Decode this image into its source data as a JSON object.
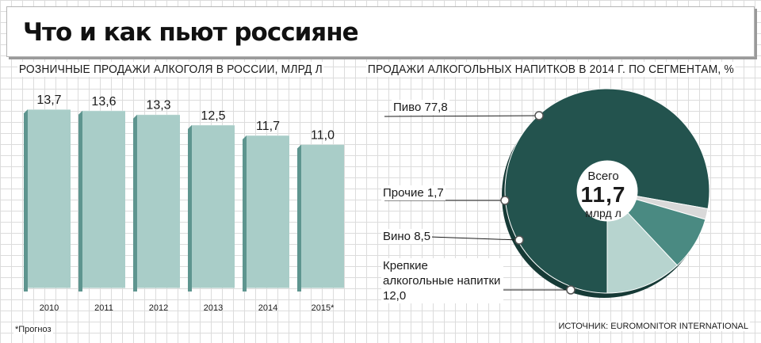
{
  "title": "Что и как пьют россияне",
  "footnote": "*Прогноз",
  "source": "ИСТОЧНИК: EUROMONITOR INTERNATIONAL",
  "colors": {
    "bar_face": "#a9cdc8",
    "bar_side": "#5e958f",
    "bar_top": "#d4e7e4",
    "pie_beer": "#23534e",
    "pie_beer_dark": "#163a36",
    "pie_other": "#d9d9d9",
    "pie_wine": "#4a8a82",
    "pie_spirits": "#b7d4cf"
  },
  "chart_data": [
    {
      "type": "bar",
      "title": "РОЗНИЧНЫЕ ПРОДАЖИ АЛКОГОЛЯ В РОССИИ, МЛРД Л",
      "categories": [
        "2010",
        "2011",
        "2012",
        "2013",
        "2014",
        "2015*"
      ],
      "values": [
        13.7,
        13.6,
        13.3,
        12.5,
        11.7,
        11.0
      ],
      "value_labels": [
        "13,7",
        "13,6",
        "13,3",
        "12,5",
        "11,7",
        "11,0"
      ],
      "ylim": [
        0,
        14.5
      ],
      "grid": true
    },
    {
      "type": "pie",
      "title": "ПРОДАЖИ АЛКОГОЛЬНЫХ НАПИТКОВ В 2014 Г. ПО СЕГМЕНТАМ, %",
      "slices": [
        {
          "label": "Пиво",
          "value": 77.8,
          "value_label": "77,8"
        },
        {
          "label": "Прочие",
          "value": 1.7,
          "value_label": "1,7"
        },
        {
          "label": "Вино",
          "value": 8.5,
          "value_label": "8,5"
        },
        {
          "label": "Крепкие алкогольные напитки",
          "value": 12.0,
          "value_label": "12,0"
        }
      ],
      "total": {
        "caption": "Всего",
        "value": "11,7",
        "unit": "млрд л"
      }
    }
  ]
}
